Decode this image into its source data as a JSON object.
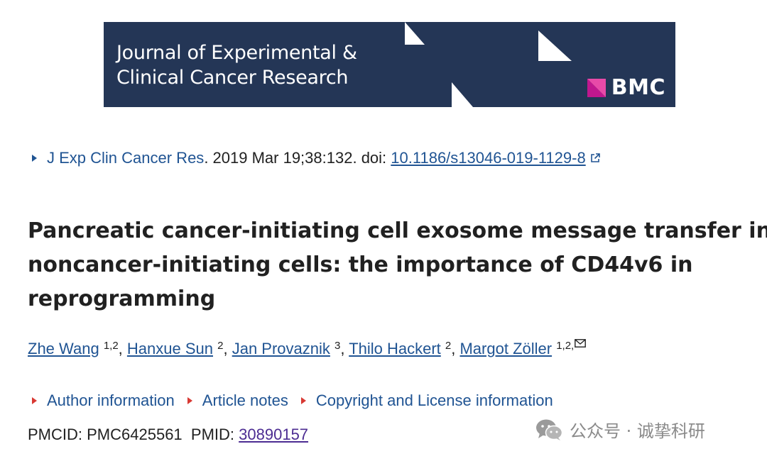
{
  "banner": {
    "journal_line1": "Journal of Experimental &",
    "journal_line2": "Clinical Cancer Research",
    "publisher": "BMC"
  },
  "citation": {
    "journal": "J Exp Clin Cancer Res",
    "details": ". 2019 Mar 19;38:132. doi: ",
    "doi": "10.1186/s13046-019-1129-8"
  },
  "title": {
    "line1": "Pancreatic cancer-initiating cell exosome message transfer into",
    "line2": "noncancer-initiating cells: the importance of CD44v6 in",
    "line3": "reprogramming"
  },
  "authors": [
    {
      "name": "Zhe Wang",
      "aff": "1,2"
    },
    {
      "name": "Hanxue Sun",
      "aff": "2"
    },
    {
      "name": "Jan Provaznik",
      "aff": "3"
    },
    {
      "name": "Thilo Hackert",
      "aff": "2"
    },
    {
      "name": "Margot Zöller",
      "aff": "1,2,"
    }
  ],
  "info_links": [
    "Author information",
    "Article notes",
    "Copyright and License information"
  ],
  "ids": {
    "pmcid_label": "PMCID:",
    "pmcid": "PMC6425561",
    "pmid_label": "PMID:",
    "pmid": "30890157"
  },
  "watermark": {
    "text": "公众号 · 诚挚科研"
  },
  "colors": {
    "banner_bg": "#243656",
    "link": "#205493",
    "caret_red": "#d83933",
    "visited": "#4c2c92"
  }
}
